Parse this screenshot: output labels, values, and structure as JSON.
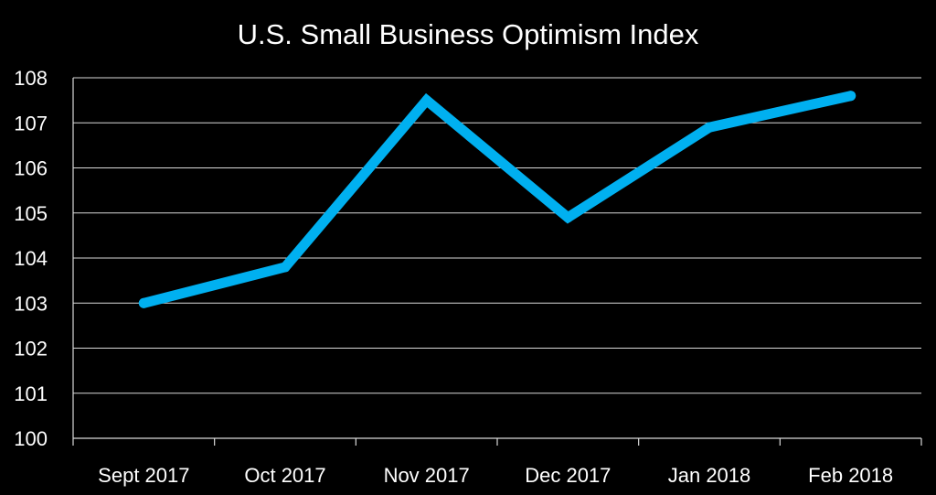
{
  "chart_data": {
    "type": "line",
    "title": "U.S. Small Business Optimism Index",
    "xlabel": "",
    "ylabel": "",
    "categories": [
      "Sept 2017",
      "Oct 2017",
      "Nov 2017",
      "Dec 2017",
      "Jan 2018",
      "Feb 2018"
    ],
    "series": [
      {
        "values": [
          103.0,
          103.8,
          107.5,
          104.9,
          106.9,
          107.6
        ],
        "color": "#00b0f0"
      }
    ],
    "ylim": [
      100,
      108
    ],
    "yticks": [
      "100",
      "101",
      "102",
      "103",
      "104",
      "105",
      "106",
      "107",
      "108"
    ],
    "grid": true,
    "legend": "none",
    "background": "#000000",
    "text_color": "#ffffff",
    "grid_color": "#d9d9d9"
  }
}
